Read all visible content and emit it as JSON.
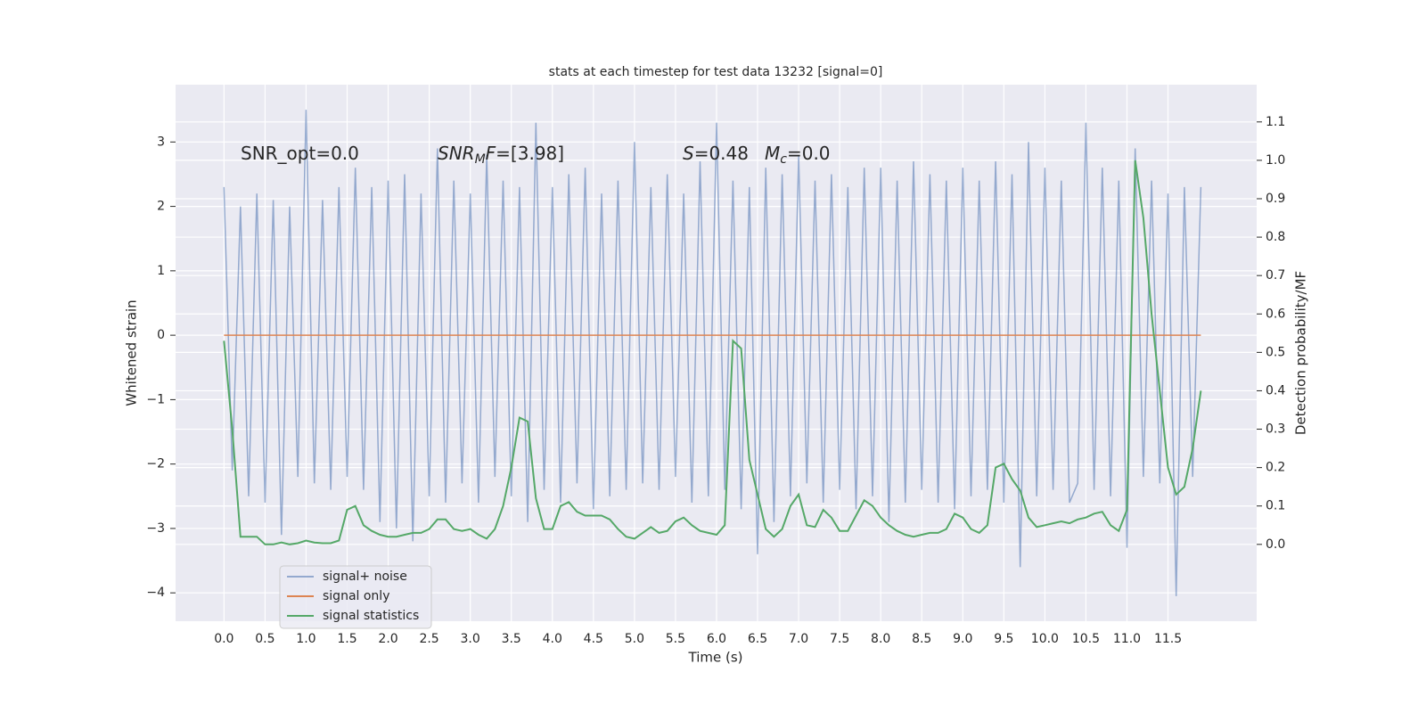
{
  "chart_data": {
    "type": "line",
    "title": "stats at each timestep for test data 13232 [signal=0]",
    "xlabel": "Time (s)",
    "ylabel": "Whitened strain",
    "y2label": "Detection probability/MF",
    "annotations": [
      {
        "segments": [
          {
            "text": "SNR_opt=0.0"
          }
        ]
      },
      {
        "segments": [
          {
            "text": "SNR",
            "italic": true
          },
          {
            "text": "M",
            "italic": true,
            "sub": true
          },
          {
            "text": "F",
            "italic": true
          },
          {
            "text": "=[3.98]"
          }
        ]
      },
      {
        "segments": [
          {
            "text": "S",
            "italic": true
          },
          {
            "text": "=0.48"
          }
        ]
      },
      {
        "segments": [
          {
            "text": "M",
            "italic": true
          },
          {
            "text": "c",
            "italic": true,
            "sub": true
          },
          {
            "text": "=0.0"
          }
        ]
      }
    ],
    "x": [
      0.0,
      0.1,
      0.2,
      0.3,
      0.4,
      0.5,
      0.6,
      0.7,
      0.8,
      0.9,
      1.0,
      1.1,
      1.2,
      1.3,
      1.4,
      1.5,
      1.6,
      1.7,
      1.8,
      1.9,
      2.0,
      2.1,
      2.2,
      2.3,
      2.4,
      2.5,
      2.6,
      2.7,
      2.8,
      2.9,
      3.0,
      3.1,
      3.2,
      3.3,
      3.4,
      3.5,
      3.6,
      3.7,
      3.8,
      3.9,
      4.0,
      4.1,
      4.2,
      4.3,
      4.4,
      4.5,
      4.6,
      4.7,
      4.8,
      4.9,
      5.0,
      5.1,
      5.2,
      5.3,
      5.4,
      5.5,
      5.6,
      5.7,
      5.8,
      5.9,
      6.0,
      6.1,
      6.2,
      6.3,
      6.4,
      6.5,
      6.6,
      6.7,
      6.8,
      6.9,
      7.0,
      7.1,
      7.2,
      7.3,
      7.4,
      7.5,
      7.6,
      7.7,
      7.8,
      7.9,
      8.0,
      8.1,
      8.2,
      8.3,
      8.4,
      8.5,
      8.6,
      8.7,
      8.8,
      8.9,
      9.0,
      9.1,
      9.2,
      9.3,
      9.4,
      9.5,
      9.6,
      9.7,
      9.8,
      9.9,
      10.0,
      10.1,
      10.2,
      10.3,
      10.4,
      10.5,
      10.6,
      10.7,
      10.8,
      10.9,
      11.0,
      11.1,
      11.2,
      11.3,
      11.4,
      11.5,
      11.6,
      11.7,
      11.8,
      11.9
    ],
    "series": [
      {
        "name": "signal+ noise",
        "color": "#4c72b0",
        "values": [
          2.3,
          -2.1,
          2.0,
          -2.5,
          2.2,
          -2.6,
          2.1,
          -3.1,
          2.0,
          -2.2,
          3.5,
          -2.3,
          2.1,
          -2.4,
          2.3,
          -2.2,
          2.6,
          -2.4,
          2.3,
          -2.9,
          2.4,
          -3.0,
          2.5,
          -3.2,
          2.2,
          -2.5,
          2.9,
          -2.6,
          2.4,
          -2.3,
          2.2,
          -2.6,
          2.8,
          -2.2,
          2.4,
          -2.5,
          2.3,
          -2.9,
          3.3,
          -2.4,
          2.3,
          -2.6,
          2.5,
          -2.3,
          2.6,
          -2.7,
          2.2,
          -2.5,
          2.4,
          -2.4,
          3.0,
          -2.3,
          2.3,
          -2.4,
          2.5,
          -2.2,
          2.2,
          -2.6,
          2.7,
          -2.5,
          3.3,
          -2.4,
          2.4,
          -2.7,
          2.3,
          -3.4,
          2.6,
          -2.9,
          2.5,
          -2.5,
          2.8,
          -2.3,
          2.4,
          -2.6,
          2.5,
          -2.4,
          2.3,
          -2.7,
          2.6,
          -2.5,
          2.6,
          -2.9,
          2.4,
          -2.6,
          2.7,
          -2.4,
          2.5,
          -2.6,
          2.4,
          -2.7,
          2.6,
          -2.5,
          2.4,
          -2.4,
          2.7,
          -2.6,
          2.5,
          -3.6,
          3.0,
          -2.5,
          2.6,
          -2.4,
          2.4,
          -2.6,
          -2.3,
          3.3,
          -2.4,
          2.6,
          -2.5,
          2.4,
          -3.3,
          2.9,
          -2.2,
          2.4,
          -2.3,
          2.2,
          -4.05,
          2.3,
          -2.2,
          2.3
        ]
      },
      {
        "name": "signal only",
        "color": "#dd8452",
        "values": [
          0,
          0,
          0,
          0,
          0,
          0,
          0,
          0,
          0,
          0,
          0,
          0,
          0,
          0,
          0,
          0,
          0,
          0,
          0,
          0,
          0,
          0,
          0,
          0,
          0,
          0,
          0,
          0,
          0,
          0,
          0,
          0,
          0,
          0,
          0,
          0,
          0,
          0,
          0,
          0,
          0,
          0,
          0,
          0,
          0,
          0,
          0,
          0,
          0,
          0,
          0,
          0,
          0,
          0,
          0,
          0,
          0,
          0,
          0,
          0,
          0,
          0,
          0,
          0,
          0,
          0,
          0,
          0,
          0,
          0,
          0,
          0,
          0,
          0,
          0,
          0,
          0,
          0,
          0,
          0,
          0,
          0,
          0,
          0,
          0,
          0,
          0,
          0,
          0,
          0,
          0,
          0,
          0,
          0,
          0,
          0,
          0,
          0,
          0,
          0,
          0,
          0,
          0,
          0,
          0,
          0,
          0,
          0,
          0,
          0,
          0,
          0,
          0,
          0,
          0,
          0,
          0,
          0,
          0,
          0
        ]
      },
      {
        "name": "signal statistics",
        "color": "#55a868",
        "axis": "y2",
        "values": [
          0.53,
          0.3,
          0.02,
          0.02,
          0.02,
          0.0,
          0.0,
          0.005,
          0.0,
          0.003,
          0.01,
          0.005,
          0.003,
          0.003,
          0.01,
          0.09,
          0.1,
          0.05,
          0.035,
          0.025,
          0.02,
          0.02,
          0.025,
          0.03,
          0.03,
          0.04,
          0.065,
          0.065,
          0.04,
          0.035,
          0.04,
          0.025,
          0.015,
          0.04,
          0.1,
          0.2,
          0.33,
          0.32,
          0.12,
          0.04,
          0.04,
          0.1,
          0.11,
          0.085,
          0.075,
          0.075,
          0.075,
          0.065,
          0.04,
          0.02,
          0.015,
          0.03,
          0.045,
          0.03,
          0.035,
          0.06,
          0.07,
          0.05,
          0.035,
          0.03,
          0.025,
          0.05,
          0.53,
          0.51,
          0.22,
          0.13,
          0.04,
          0.02,
          0.04,
          0.1,
          0.13,
          0.05,
          0.045,
          0.09,
          0.07,
          0.035,
          0.035,
          0.075,
          0.115,
          0.1,
          0.07,
          0.05,
          0.035,
          0.025,
          0.02,
          0.025,
          0.03,
          0.03,
          0.04,
          0.08,
          0.07,
          0.04,
          0.03,
          0.05,
          0.2,
          0.21,
          0.17,
          0.14,
          0.07,
          0.045,
          0.05,
          0.055,
          0.06,
          0.055,
          0.065,
          0.07,
          0.08,
          0.085,
          0.05,
          0.035,
          0.09,
          1.0,
          0.85,
          0.6,
          0.4,
          0.2,
          0.13,
          0.15,
          0.25,
          0.4
        ]
      }
    ],
    "xlim": [
      -0.59,
      12.58
    ],
    "xticks": [
      {
        "value": 0,
        "label": "0.0"
      },
      0.5,
      {
        "value": 1,
        "label": "1.0"
      },
      1.5,
      {
        "value": 2,
        "label": "2.0"
      },
      2.5,
      {
        "value": 3,
        "label": "3.0"
      },
      3.5,
      {
        "value": 4,
        "label": "4.0"
      },
      4.5,
      {
        "value": 5,
        "label": "5.0"
      },
      5.5,
      {
        "value": 6,
        "label": "6.0"
      },
      6.5,
      {
        "value": 7,
        "label": "7.0"
      },
      7.5,
      {
        "value": 8,
        "label": "8.0"
      },
      8.5,
      {
        "value": 9,
        "label": "9.0"
      },
      9.5,
      {
        "value": 10,
        "label": "10.0"
      },
      10.5,
      {
        "value": 11,
        "label": "11.0"
      },
      11.5
    ],
    "ylim": [
      -4.44,
      3.89
    ],
    "yticks": [
      {
        "value": -4,
        "label": "−4"
      },
      {
        "value": -3,
        "label": "−3"
      },
      {
        "value": -2,
        "label": "−2"
      },
      {
        "value": -1,
        "label": "−1"
      },
      0,
      1,
      2,
      3
    ],
    "y2lim": [
      -0.2,
      1.197
    ],
    "y2ticks": [
      {
        "value": 0,
        "label": "0.0"
      },
      0.1,
      0.2,
      0.3,
      0.4,
      0.5,
      0.6,
      0.7,
      0.8,
      0.9,
      {
        "value": 1,
        "label": "1.0"
      },
      1.1
    ],
    "grid": true,
    "legend": "lower left"
  }
}
